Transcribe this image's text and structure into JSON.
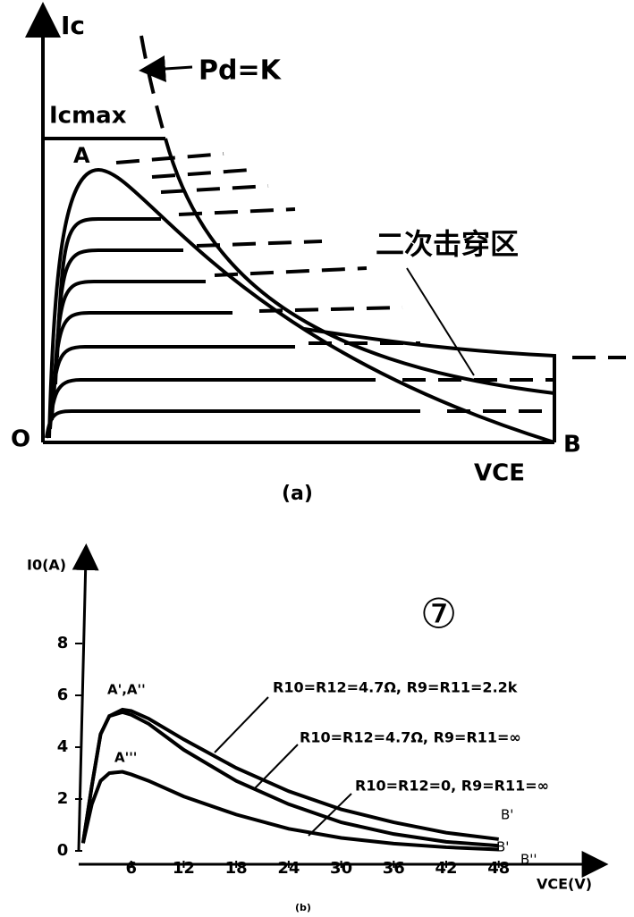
{
  "diagram": {
    "y_label": "Ic",
    "x_label": "VCE",
    "boundary_label": "Pd=K",
    "icmax_label": "Icmax",
    "peak_label": "A",
    "region_label": "二次击穿区",
    "origin_label": "O",
    "end_label": "B",
    "caption": "(a)"
  },
  "chart_data": {
    "type": "line",
    "badge": "⑦",
    "x_label": "VCE(V)",
    "y_label": "I0(A)",
    "caption": "(b)",
    "x": [
      0.5,
      1.5,
      2.5,
      3.5,
      5,
      6,
      8,
      12,
      18,
      24,
      30,
      36,
      42,
      48
    ],
    "series": [
      {
        "name": "R10=R12=4.7Ω, R9=R11=2.2k",
        "color": "#000000",
        "peak_label": "A',A''",
        "end_label": "B'",
        "values": [
          0.3,
          2.5,
          4.5,
          5.2,
          5.45,
          5.4,
          5.1,
          4.3,
          3.2,
          2.3,
          1.6,
          1.1,
          0.7,
          0.45
        ]
      },
      {
        "name": "R10=R12=4.7Ω, R9=R11=∞",
        "color": "#000000",
        "end_label": "B'",
        "values": [
          0.3,
          2.5,
          4.5,
          5.2,
          5.35,
          5.25,
          4.9,
          3.9,
          2.7,
          1.8,
          1.1,
          0.65,
          0.35,
          0.2
        ]
      },
      {
        "name": "R10=R12=0, R9=R11=∞",
        "color": "#000000",
        "peak_label": "A'''",
        "end_label": "B''",
        "values": [
          0.3,
          1.8,
          2.7,
          3.0,
          3.05,
          2.95,
          2.7,
          2.1,
          1.4,
          0.85,
          0.5,
          0.28,
          0.14,
          0.05
        ]
      }
    ],
    "xlim": [
      0,
      58
    ],
    "ylim": [
      0,
      11
    ],
    "xticks": [
      6,
      12,
      18,
      24,
      30,
      36,
      42,
      48
    ],
    "yticks": [
      0,
      2,
      4,
      6,
      8
    ]
  }
}
